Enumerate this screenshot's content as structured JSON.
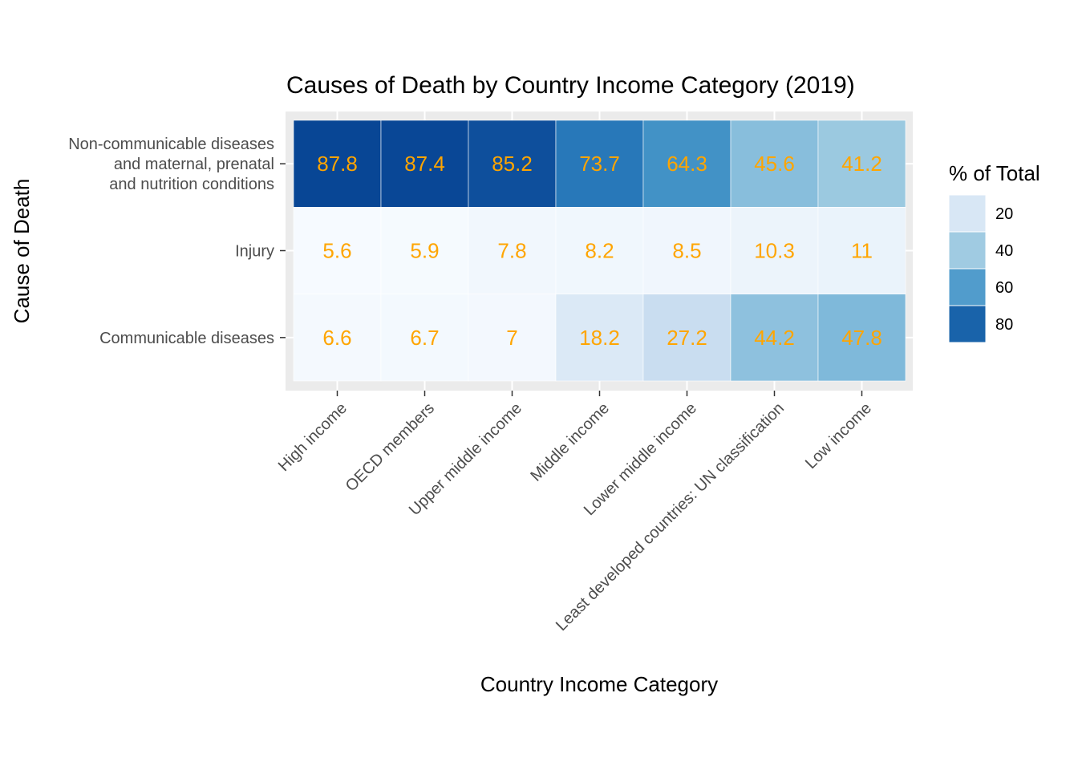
{
  "chart_data": {
    "type": "heatmap",
    "title": "Causes of Death by Country Income Category (2019)",
    "xlabel": "Country Income Category",
    "ylabel": "Cause of Death",
    "x_categories": [
      "High income",
      "OECD members",
      "Upper middle income",
      "Middle income",
      "Lower middle income",
      "Least developed countries: UN classification",
      "Low income"
    ],
    "y_categories": [
      {
        "lines": [
          "Non-communicable diseases",
          "and maternal, prenatal",
          "and nutrition conditions"
        ]
      },
      {
        "lines": [
          "Injury"
        ]
      },
      {
        "lines": [
          "Communicable diseases"
        ]
      }
    ],
    "values": [
      [
        "87.8",
        "87.4",
        "85.2",
        "73.7",
        "64.3",
        "45.6",
        "41.2"
      ],
      [
        "5.6",
        "5.9",
        "7.8",
        "8.2",
        "8.5",
        "10.3",
        "11"
      ],
      [
        "6.6",
        "6.7",
        "7",
        "18.2",
        "27.2",
        "44.2",
        "47.8"
      ]
    ],
    "legend": {
      "title": "% of Total",
      "position": "right",
      "breaks": [
        20,
        40,
        60,
        80
      ]
    },
    "color_scale": {
      "low_value": 5,
      "high_value": 88,
      "stops": [
        "#F7FBFF",
        "#DEEBF7",
        "#C6DBEF",
        "#9ECAE1",
        "#6BAED6",
        "#4292C6",
        "#2171B5",
        "#084594"
      ]
    },
    "label_color": "#FFA500",
    "panel_background": "#EBEBEB",
    "grid": true
  }
}
